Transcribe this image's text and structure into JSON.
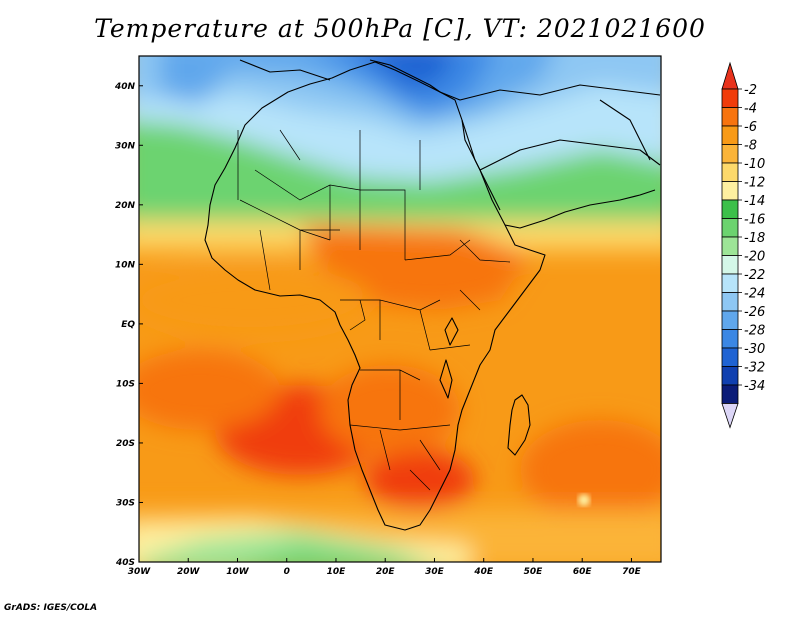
{
  "title": "Temperature at 500hPa [C], VT: 2021021600",
  "credit": "GrADS: IGES/COLA",
  "map": {
    "lon_range": [
      -30,
      76
    ],
    "lat_range": [
      -40,
      45
    ],
    "lon_ticks": [
      {
        "v": -30,
        "label": "30W"
      },
      {
        "v": -20,
        "label": "20W"
      },
      {
        "v": -10,
        "label": "10W"
      },
      {
        "v": 0,
        "label": "0"
      },
      {
        "v": 10,
        "label": "10E"
      },
      {
        "v": 20,
        "label": "20E"
      },
      {
        "v": 30,
        "label": "30E"
      },
      {
        "v": 40,
        "label": "40E"
      },
      {
        "v": 50,
        "label": "50E"
      },
      {
        "v": 60,
        "label": "60E"
      },
      {
        "v": 70,
        "label": "70E"
      }
    ],
    "lat_ticks": [
      {
        "v": 40,
        "label": "40N"
      },
      {
        "v": 30,
        "label": "30N"
      },
      {
        "v": 20,
        "label": "20N"
      },
      {
        "v": 10,
        "label": "10N"
      },
      {
        "v": 0,
        "label": "EQ"
      },
      {
        "v": -10,
        "label": "10S"
      },
      {
        "v": -20,
        "label": "20S"
      },
      {
        "v": -30,
        "label": "30S"
      },
      {
        "v": -40,
        "label": "40S"
      }
    ]
  },
  "colorbar": {
    "levels": [
      "-2",
      "-4",
      "-6",
      "-8",
      "-10",
      "-12",
      "-14",
      "-16",
      "-18",
      "-20",
      "-22",
      "-24",
      "-26",
      "-28",
      "-30",
      "-32",
      "-34"
    ],
    "colors": [
      "#f03c0a",
      "#f7740f",
      "#f89a17",
      "#fbb439",
      "#fdd96b",
      "#fef0a0",
      "#3cc04a",
      "#6cd36f",
      "#9de597",
      "#d4f7e8",
      "#b7e4fa",
      "#8ec7f3",
      "#60a7ec",
      "#3b87e4",
      "#1f63d3",
      "#1040b0",
      "#0b1c78"
    ],
    "top_color": "#e8321c",
    "bottom_color": "#dcd6f7"
  }
}
